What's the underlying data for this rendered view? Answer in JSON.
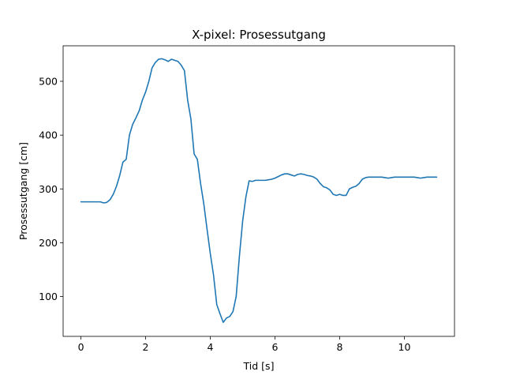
{
  "chart_data": {
    "type": "line",
    "title": "X-pixel: Prosessutgang",
    "xlabel": "Tid [s]",
    "ylabel": "Prosessutgang [cm]",
    "xlim": [
      -0.55,
      11.55
    ],
    "ylim": [
      26,
      566
    ],
    "xticks": [
      0,
      2,
      4,
      6,
      8,
      10
    ],
    "yticks": [
      100,
      200,
      300,
      400,
      500
    ],
    "grid": false,
    "series": [
      {
        "color": "#1f77b4",
        "x": [
          0,
          0.1,
          0.2,
          0.3,
          0.4,
          0.5,
          0.6,
          0.7,
          0.8,
          0.9,
          1.0,
          1.1,
          1.2,
          1.3,
          1.4,
          1.5,
          1.6,
          1.7,
          1.8,
          1.9,
          2.0,
          2.1,
          2.2,
          2.3,
          2.4,
          2.5,
          2.6,
          2.7,
          2.8,
          2.9,
          3.0,
          3.1,
          3.2,
          3.3,
          3.4,
          3.5,
          3.6,
          3.7,
          3.8,
          3.9,
          4.0,
          4.1,
          4.2,
          4.3,
          4.4,
          4.5,
          4.6,
          4.7,
          4.8,
          4.9,
          5.0,
          5.1,
          5.2,
          5.3,
          5.4,
          5.5,
          5.6,
          5.7,
          5.8,
          5.9,
          6.0,
          6.1,
          6.2,
          6.3,
          6.4,
          6.5,
          6.6,
          6.7,
          6.8,
          6.9,
          7.0,
          7.1,
          7.2,
          7.3,
          7.4,
          7.5,
          7.6,
          7.7,
          7.8,
          7.9,
          8.0,
          8.1,
          8.2,
          8.3,
          8.4,
          8.5,
          8.6,
          8.7,
          8.8,
          8.9,
          9.0,
          9.1,
          9.2,
          9.3,
          9.4,
          9.5,
          9.6,
          9.7,
          9.8,
          9.9,
          10.0,
          10.1,
          10.2,
          10.3,
          10.4,
          10.5,
          10.6,
          10.7,
          10.8,
          10.9,
          11.0
        ],
        "y": [
          276,
          276,
          276,
          276,
          276,
          276,
          276,
          274,
          275,
          280,
          290,
          305,
          325,
          350,
          355,
          400,
          420,
          432,
          445,
          465,
          480,
          500,
          525,
          535,
          541,
          542,
          540,
          537,
          541,
          539,
          537,
          530,
          520,
          465,
          430,
          365,
          355,
          310,
          272,
          225,
          180,
          140,
          85,
          68,
          52,
          60,
          63,
          72,
          100,
          175,
          240,
          285,
          315,
          314,
          316,
          316,
          316,
          316,
          317,
          318,
          320,
          323,
          326,
          328,
          328,
          326,
          324,
          327,
          328,
          327,
          325,
          324,
          322,
          318,
          310,
          304,
          302,
          298,
          290,
          288,
          290,
          288,
          288,
          300,
          303,
          305,
          310,
          318,
          321,
          322,
          322,
          322,
          322,
          322,
          321,
          320,
          321,
          322,
          322,
          322,
          322,
          322,
          322,
          322,
          321,
          320,
          321,
          322,
          322,
          322,
          322
        ]
      }
    ]
  }
}
